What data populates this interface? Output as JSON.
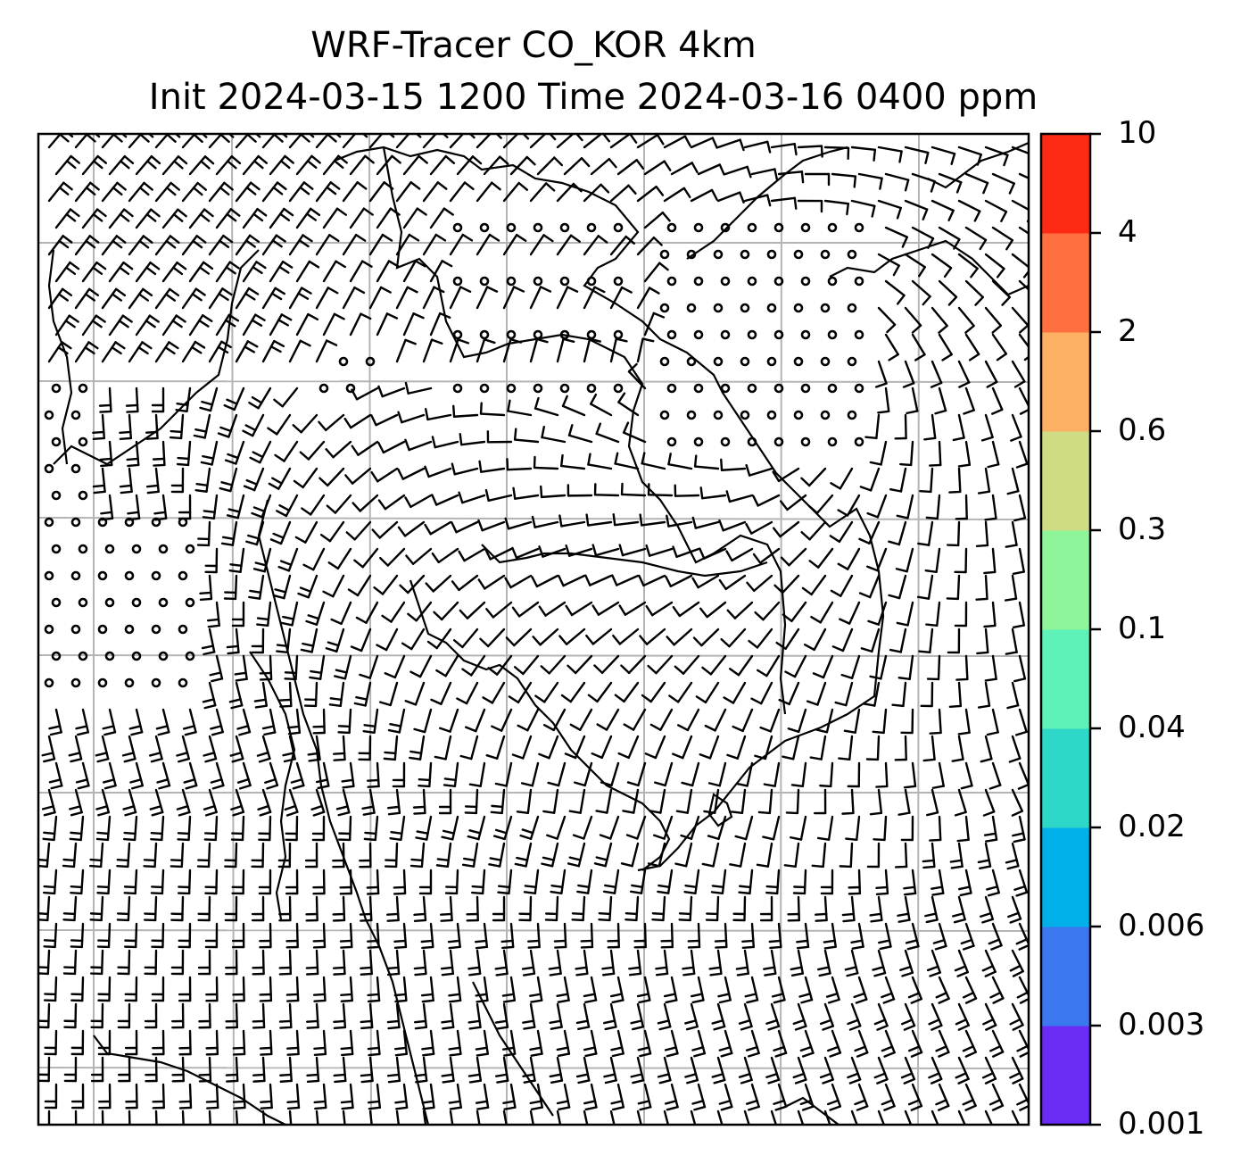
{
  "title": {
    "line1": "WRF-Tracer CO_KOR 4km",
    "line2": "Init 2024-03-15 1200 Time 2024-03-16 0400 ppm"
  },
  "colorbar": {
    "levels": [
      "0.001",
      "0.003",
      "0.006",
      "0.02",
      "0.04",
      "0.1",
      "0.3",
      "0.6",
      "2",
      "4",
      "10"
    ],
    "colors": [
      "#6a2cf5",
      "#3b78f0",
      "#00b0e8",
      "#2ed8c8",
      "#5ef2b8",
      "#8ef59a",
      "#d0dc84",
      "#fbb064",
      "#ff7040",
      "#ff2a14"
    ]
  },
  "map": {
    "layer": "wind barbs over Korean peninsula coastlines",
    "grid_lines": true,
    "calm_marker": "circle"
  }
}
